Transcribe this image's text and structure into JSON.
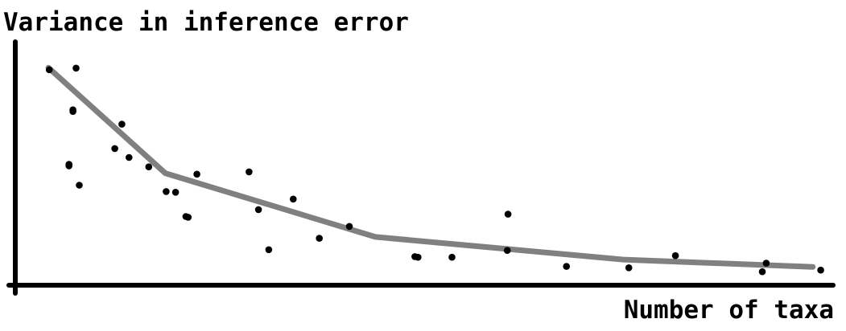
{
  "chart_data": {
    "type": "scatter",
    "title": "",
    "xlabel": "Number of taxa",
    "ylabel": "Variance in inference error",
    "xlim": [
      0,
      100
    ],
    "ylim": [
      0,
      100
    ],
    "grid": false,
    "legend": "none",
    "colors": {
      "axis": "#000000",
      "points": "#000000",
      "trend": "#808080"
    },
    "series": [
      {
        "type": "scatter",
        "points": [
          {
            "x": 4.3,
            "y": 94.1
          },
          {
            "x": 7.7,
            "y": 94.8
          },
          {
            "x": 7.3,
            "y": 76.6
          },
          {
            "x": 7.3,
            "y": 75.9
          },
          {
            "x": 6.8,
            "y": 52.1
          },
          {
            "x": 6.8,
            "y": 52.8
          },
          {
            "x": 8.1,
            "y": 43.7
          },
          {
            "x": 13.5,
            "y": 70.3
          },
          {
            "x": 12.6,
            "y": 59.7
          },
          {
            "x": 14.4,
            "y": 55.8
          },
          {
            "x": 16.9,
            "y": 51.7
          },
          {
            "x": 19.1,
            "y": 40.9
          },
          {
            "x": 20.3,
            "y": 40.6
          },
          {
            "x": 21.6,
            "y": 30.0
          },
          {
            "x": 21.9,
            "y": 29.7
          },
          {
            "x": 23.0,
            "y": 48.5
          },
          {
            "x": 29.6,
            "y": 49.5
          },
          {
            "x": 30.8,
            "y": 33.0
          },
          {
            "x": 32.1,
            "y": 15.5
          },
          {
            "x": 35.2,
            "y": 37.6
          },
          {
            "x": 38.5,
            "y": 20.5
          },
          {
            "x": 42.3,
            "y": 25.7
          },
          {
            "x": 50.6,
            "y": 12.5
          },
          {
            "x": 51.0,
            "y": 12.2
          },
          {
            "x": 55.3,
            "y": 12.2
          },
          {
            "x": 62.4,
            "y": 31.0
          },
          {
            "x": 62.3,
            "y": 15.2
          },
          {
            "x": 69.8,
            "y": 8.2
          },
          {
            "x": 77.7,
            "y": 7.6
          },
          {
            "x": 83.6,
            "y": 12.9
          },
          {
            "x": 94.6,
            "y": 5.9
          },
          {
            "x": 95.1,
            "y": 9.6
          },
          {
            "x": 102.0,
            "y": 6.6
          }
        ]
      },
      {
        "type": "line",
        "points": [
          {
            "x": 4.2,
            "y": 95.0
          },
          {
            "x": 19.0,
            "y": 48.9
          },
          {
            "x": 45.6,
            "y": 21.1
          },
          {
            "x": 77.0,
            "y": 11.2
          },
          {
            "x": 101.0,
            "y": 8.0
          }
        ]
      }
    ]
  }
}
